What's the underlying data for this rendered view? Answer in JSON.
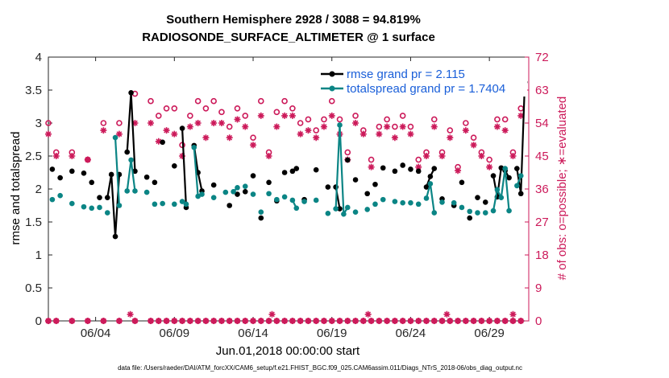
{
  "chart_data": {
    "type": "line",
    "title": "Southern Hemisphere 2928 / 3088 = 94.819%",
    "subtitle": "RADIOSONDE_SURFACE_ALTIMETER @ 1 surface",
    "xlabel": "Jun.01,2018 00:00:00 start",
    "ylabel": "rmse and totalspread",
    "y2label": "# of obs: o=possible; ∗=evaluated",
    "footnote": "data file: /Users/raeder/DAI/ATM_forcXX/CAM6_setup/f.e21.FHIST_BGC.f09_025.CAM6assim.011/Diags_NTrS_2018-06/obs_diag_output.nc",
    "xlim": [
      1,
      31.5
    ],
    "ylim": [
      0,
      4
    ],
    "y2lim": [
      0,
      72
    ],
    "xticks": [
      4,
      9,
      14,
      19,
      24,
      29
    ],
    "xtick_labels": [
      "06/04",
      "06/09",
      "06/14",
      "06/19",
      "06/24",
      "06/29"
    ],
    "yticks": [
      "0",
      "0.5",
      "1",
      "1.5",
      "2",
      "2.5",
      "3",
      "3.5",
      "4"
    ],
    "y2ticks": [
      "0",
      "9",
      "18",
      "27",
      "36",
      "45",
      "54",
      "63",
      "72"
    ],
    "legend": [
      "rmse grand pr = 2.115",
      "totalspread grand pr = 1.7404"
    ],
    "x": [
      1,
      1.25,
      1.5,
      1.75,
      2,
      2.25,
      2.5,
      2.75,
      3,
      3.25,
      3.5,
      3.75,
      4,
      4.25,
      4.5,
      4.75,
      5,
      5.25,
      5.5,
      5.75,
      6,
      6.25,
      6.5,
      6.75,
      7,
      7.25,
      7.5,
      7.75,
      8,
      8.25,
      8.5,
      8.75,
      9,
      9.25,
      9.5,
      9.75,
      10,
      10.25,
      10.5,
      10.75,
      11,
      11.25,
      11.5,
      11.75,
      12,
      12.25,
      12.5,
      12.75,
      13,
      13.25,
      13.5,
      13.75,
      14,
      14.25,
      14.5,
      14.75,
      15,
      15.25,
      15.5,
      15.75,
      16,
      16.25,
      16.5,
      16.75,
      17,
      17.25,
      17.5,
      17.75,
      18,
      18.25,
      18.5,
      18.75,
      19,
      19.25,
      19.5,
      19.75,
      20,
      20.25,
      20.5,
      20.75,
      21,
      21.25,
      21.5,
      21.75,
      22,
      22.25,
      22.5,
      22.75,
      23,
      23.25,
      23.5,
      23.75,
      24,
      24.25,
      24.5,
      24.75,
      25,
      25.25,
      25.5,
      25.75,
      26,
      26.25,
      26.5,
      26.75,
      27,
      27.25,
      27.5,
      27.75,
      28,
      28.25,
      28.5,
      28.75,
      29,
      29.25,
      29.5,
      29.75,
      30,
      30.25,
      30.5,
      30.75,
      31,
      31.25
    ],
    "series": [
      {
        "name": "rmse",
        "color": "#000000",
        "values": [
          null,
          2.3,
          null,
          2.17,
          null,
          null,
          2.27,
          null,
          null,
          2.24,
          null,
          2.1,
          null,
          1.87,
          null,
          1.87,
          2.22,
          1.28,
          2.22,
          null,
          2.56,
          3.46,
          2.27,
          null,
          null,
          2.18,
          null,
          2.1,
          null,
          2.71,
          null,
          null,
          2.35,
          null,
          2.92,
          1.72,
          null,
          2.66,
          2.25,
          1.97,
          null,
          null,
          2.06,
          null,
          null,
          null,
          1.75,
          null,
          1.92,
          null,
          1.96,
          null,
          2.2,
          null,
          1.56,
          null,
          2.1,
          null,
          1.82,
          null,
          2.25,
          null,
          2.27,
          2.31,
          null,
          1.84,
          null,
          null,
          2.29,
          null,
          null,
          2.03,
          null,
          2.03,
          1.7,
          null,
          2.44,
          null,
          2.14,
          null,
          null,
          1.93,
          null,
          2.07,
          null,
          2.32,
          null,
          null,
          2.27,
          null,
          2.36,
          null,
          2.3,
          null,
          2.27,
          null,
          2.03,
          2.19,
          2.31,
          null,
          1.85,
          null,
          null,
          1.75,
          null,
          2.1,
          null,
          1.56,
          null,
          1.87,
          null,
          1.8,
          null,
          2.2,
          1.88,
          2.32,
          2.28,
          2.17,
          null,
          2.31,
          1.93,
          3.62
        ]
      },
      {
        "name": "totalspread",
        "color": "#0b8585",
        "values": [
          null,
          1.84,
          null,
          1.9,
          null,
          null,
          1.78,
          null,
          null,
          1.73,
          null,
          1.71,
          null,
          1.72,
          null,
          1.64,
          null,
          2.78,
          1.75,
          null,
          1.97,
          2.44,
          1.97,
          null,
          null,
          1.95,
          null,
          1.77,
          null,
          1.78,
          null,
          null,
          1.77,
          null,
          1.81,
          1.77,
          null,
          2.63,
          1.89,
          1.92,
          null,
          null,
          1.87,
          null,
          null,
          1.95,
          null,
          1.96,
          2.02,
          null,
          2.04,
          null,
          1.92,
          null,
          1.65,
          null,
          1.93,
          null,
          1.84,
          null,
          1.88,
          null,
          1.83,
          1.71,
          null,
          1.81,
          null,
          null,
          1.83,
          null,
          null,
          1.63,
          null,
          1.7,
          2.97,
          1.62,
          1.72,
          null,
          1.65,
          null,
          null,
          1.69,
          null,
          1.77,
          null,
          1.84,
          null,
          null,
          1.81,
          null,
          1.79,
          null,
          1.79,
          null,
          1.77,
          null,
          1.86,
          2.08,
          1.64,
          null,
          1.8,
          null,
          null,
          1.79,
          null,
          1.72,
          null,
          1.66,
          null,
          1.64,
          null,
          1.64,
          null,
          1.67,
          1.99,
          1.87,
          2.31,
          1.67,
          null,
          2.05,
          2.2,
          null
        ]
      }
    ],
    "obs_possible": {
      "color": "#cc1a5a",
      "x": [
        1.0,
        1.5,
        2.5,
        3.5,
        4.5,
        5.5,
        6.5,
        7.5,
        8.0,
        8.5,
        9.0,
        9.5,
        10.0,
        10.5,
        11.0,
        11.5,
        12.0,
        12.5,
        13.0,
        13.5,
        14.0,
        14.5,
        15.0,
        15.5,
        16.0,
        16.5,
        17.0,
        17.5,
        18.0,
        18.5,
        19.0,
        19.5,
        20.0,
        20.5,
        21.0,
        21.5,
        22.0,
        22.5,
        23.0,
        23.5,
        24.0,
        24.5,
        25.0,
        25.5,
        26.0,
        26.5,
        27.0,
        27.5,
        28.0,
        28.5,
        29.0,
        29.5,
        30.0,
        30.5,
        31.0
      ],
      "values": [
        54,
        46,
        46,
        44,
        54,
        54,
        62,
        60,
        56,
        58,
        58,
        48,
        56,
        60,
        58,
        60,
        57,
        53,
        58,
        56,
        50,
        60,
        46,
        57,
        60,
        58,
        54,
        55,
        52,
        55,
        60,
        55,
        46,
        56,
        52,
        44,
        53,
        55,
        53,
        56,
        53,
        44,
        46,
        55,
        46,
        52,
        42,
        54,
        50,
        46,
        44,
        55,
        55,
        46,
        58
      ]
    },
    "obs_evaluated": {
      "color": "#cc1a5a",
      "x": [
        1.0,
        1.5,
        2.5,
        3.5,
        4.5,
        5.5,
        6.5,
        7.5,
        8.0,
        8.5,
        9.0,
        9.5,
        10.0,
        10.5,
        11.0,
        11.5,
        12.0,
        12.5,
        13.0,
        13.5,
        14.0,
        14.5,
        15.0,
        15.5,
        16.0,
        16.5,
        17.0,
        17.5,
        18.0,
        18.5,
        19.0,
        19.5,
        20.0,
        20.5,
        21.0,
        21.5,
        22.0,
        22.5,
        23.0,
        23.5,
        24.0,
        24.5,
        25.0,
        25.5,
        26.0,
        26.5,
        27.0,
        27.5,
        28.0,
        28.5,
        29.0,
        29.5,
        30.0,
        30.5,
        31.0
      ],
      "values": [
        51,
        45,
        45,
        44,
        52,
        51,
        54,
        54,
        49,
        52,
        51,
        45,
        53,
        54,
        50,
        54,
        54,
        50,
        55,
        53,
        48,
        56,
        45,
        53,
        56,
        56,
        51,
        52,
        50,
        53,
        56,
        51,
        44,
        54,
        51,
        42,
        51,
        53,
        50,
        53,
        51,
        42,
        45,
        53,
        45,
        50,
        41,
        52,
        48,
        45,
        42,
        53,
        52,
        45,
        56
      ]
    }
  }
}
